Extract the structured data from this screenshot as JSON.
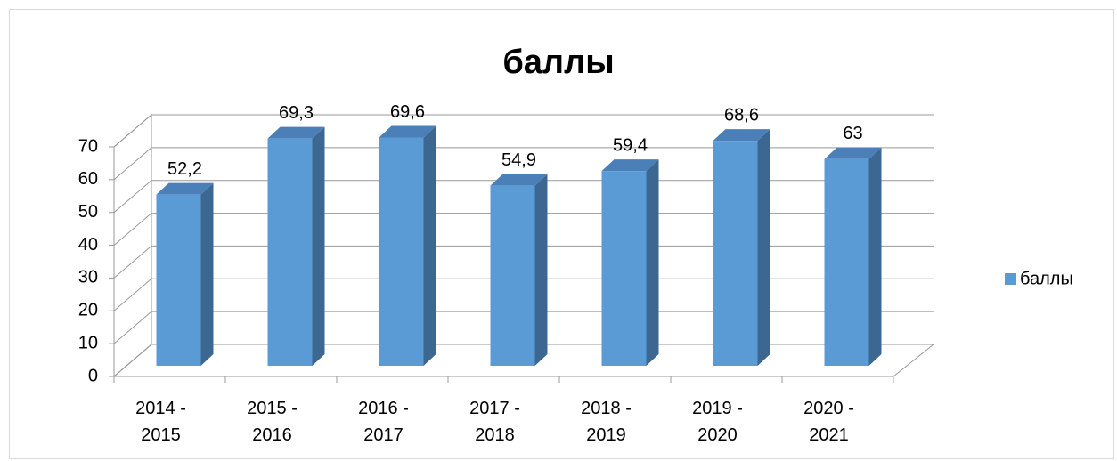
{
  "chart_data": {
    "type": "bar",
    "title": "баллы",
    "categories": [
      "2014 - 2015",
      "2015 - 2016",
      "2016 - 2017",
      "2017 - 2018",
      "2018 - 2019",
      "2019 - 2020",
      "2020 - 2021"
    ],
    "series": [
      {
        "name": "баллы",
        "color": "#5b9bd5",
        "values": [
          52.2,
          69.3,
          69.6,
          54.9,
          59.4,
          68.6,
          63
        ],
        "value_labels": [
          "52,2",
          "69,3",
          "69,6",
          "54,9",
          "59,4",
          "68,6",
          "63"
        ]
      }
    ],
    "ylim": [
      0,
      70
    ],
    "yticks": [
      0,
      10,
      20,
      30,
      40,
      50,
      60,
      70
    ],
    "grid": true,
    "legend": "right"
  }
}
